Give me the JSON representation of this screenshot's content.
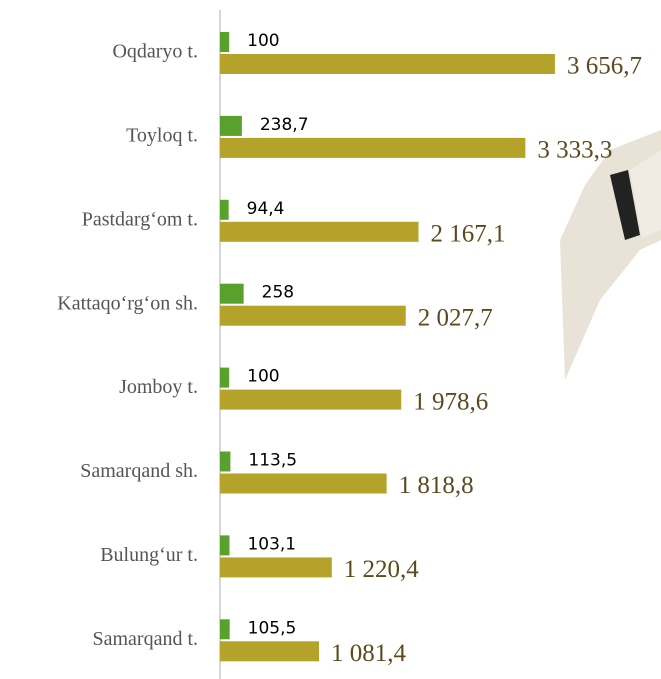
{
  "chart_data": {
    "type": "hbar",
    "categories": [
      "Oqdaryo t.",
      "Toyloq t.",
      "Pastdarg‘om t.",
      "Kattaqo‘rg‘on sh.",
      "Jomboy t.",
      "Samarqand sh.",
      "Bulung‘ur t.",
      "Samarqand t."
    ],
    "series": [
      {
        "color": "#5aa02c",
        "values": [
          100,
          238.7,
          94.4,
          258,
          100,
          113.5,
          103.1,
          105.5
        ],
        "value_labels": [
          "100",
          "238,7",
          "94,4",
          "258",
          "100",
          "113,5",
          "103,1",
          "105,5"
        ]
      },
      {
        "color": "#b5a22a",
        "values": [
          3656.7,
          3333.3,
          2167.1,
          2027.7,
          1978.6,
          1818.8,
          1220.4,
          1081.4
        ],
        "value_labels": [
          "3 656,7",
          "3 333,3",
          "2 167,1",
          "2 027,7",
          "1 978,6",
          "1 818,8",
          "1 220,4",
          "1 081,4"
        ]
      }
    ]
  }
}
